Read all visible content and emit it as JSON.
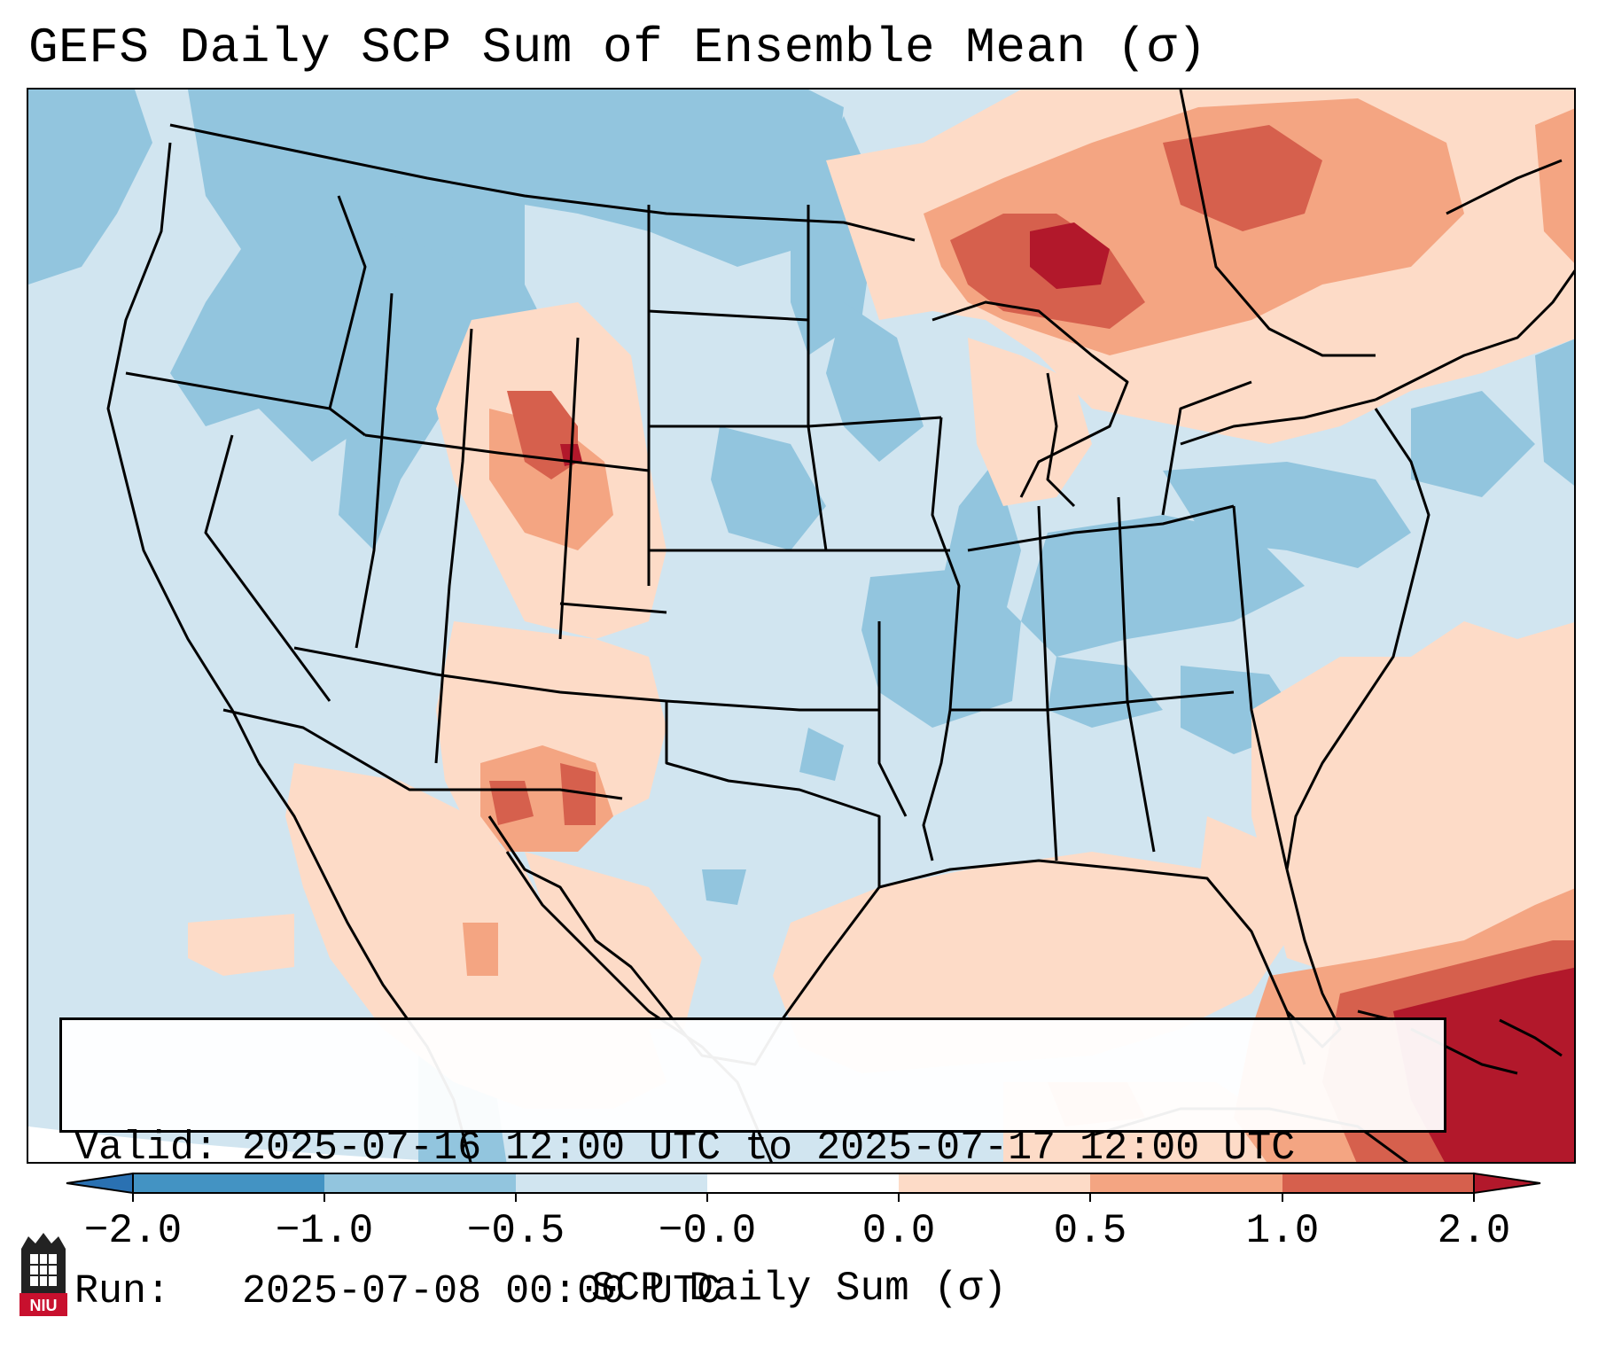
{
  "title": "GEFS Daily SCP Sum of Ensemble Mean (σ)",
  "info": {
    "valid_line": "Valid: 2025-07-16 12:00 UTC to 2025-07-17 12:00 UTC",
    "run_line": "Run:   2025-07-08 00:00 UTC"
  },
  "colorbar": {
    "label": "SCP Daily Sum (σ)",
    "ticks": [
      "−2.0",
      "−1.0",
      "−0.5",
      "−0.0",
      "0.0",
      "0.5",
      "1.0",
      "2.0"
    ],
    "colors": [
      "#2a71b2",
      "#4393c3",
      "#92c5de",
      "#d1e5f0",
      "#ffffff",
      "#fddbc7",
      "#f4a582",
      "#d6604d",
      "#b2182b"
    ],
    "extend": "both"
  },
  "legend_categories": [
    {
      "range": "< -2.0",
      "color": "#2a71b2"
    },
    {
      "range": "-2.0 to -1.0",
      "color": "#4393c3"
    },
    {
      "range": "-1.0 to -0.5",
      "color": "#92c5de"
    },
    {
      "range": "-0.5 to -0.0",
      "color": "#d1e5f0"
    },
    {
      "range": "-0.0 to 0.0",
      "color": "#ffffff"
    },
    {
      "range": "0.0 to 0.5",
      "color": "#fddbc7"
    },
    {
      "range": "0.5 to 1.0",
      "color": "#f4a582"
    },
    {
      "range": "1.0 to 2.0",
      "color": "#d6604d"
    },
    {
      "range": "> 2.0",
      "color": "#b2182b"
    }
  ],
  "logo": {
    "text": "NIU"
  }
}
